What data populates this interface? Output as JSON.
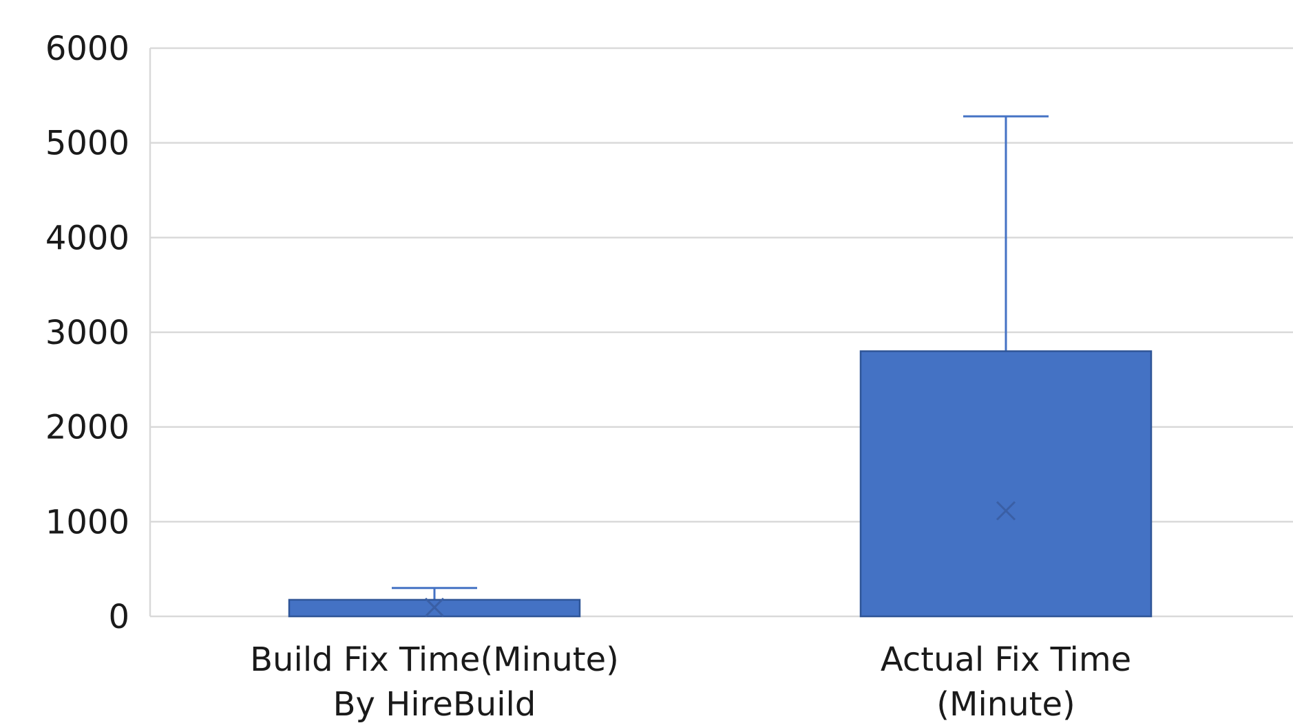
{
  "chart_data": {
    "type": "box",
    "title": "",
    "xlabel": "",
    "ylabel": "",
    "ylim": [
      0,
      6000
    ],
    "yticks": [
      0,
      1000,
      2000,
      3000,
      4000,
      5000,
      6000
    ],
    "grid": true,
    "legend": "none",
    "color": "#4472C4",
    "categories": [
      {
        "lines": [
          "Build Fix Time(Minute)",
          "By HireBuild"
        ],
        "min": 0,
        "q1": 0,
        "median": 0,
        "q3": 175,
        "whisker_high": 300,
        "mean": 95
      },
      {
        "lines": [
          "Actual Fix Time",
          "(Minute)"
        ],
        "min": 0,
        "q1": 0,
        "median": 0,
        "q3": 2800,
        "whisker_high": 5280,
        "mean": 1115
      }
    ]
  }
}
